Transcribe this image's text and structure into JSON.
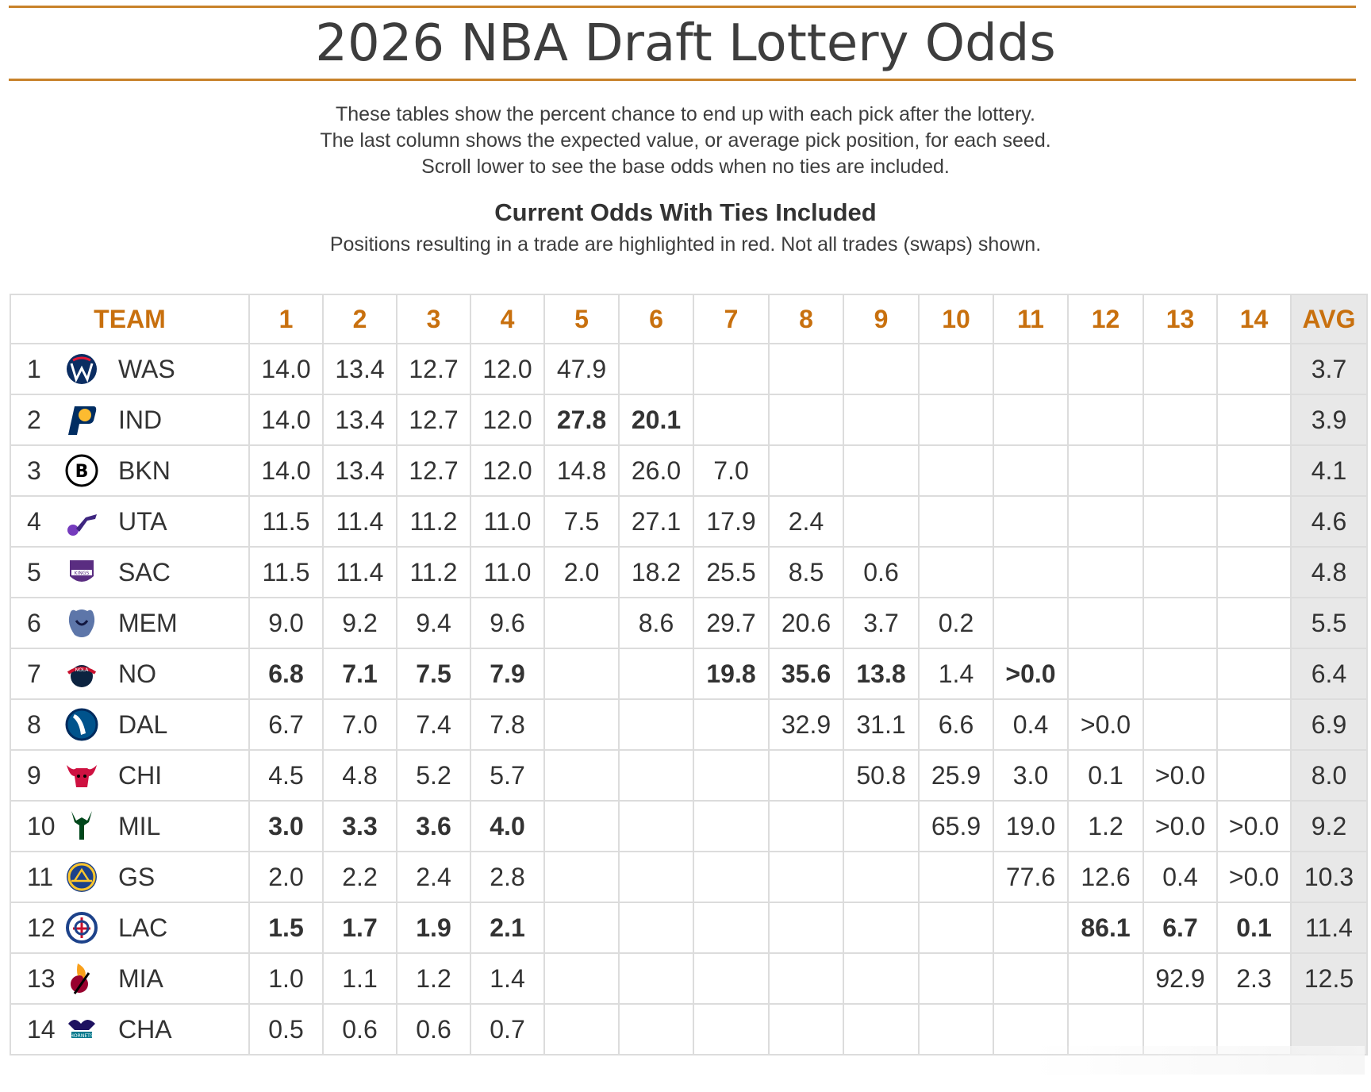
{
  "title": "2026 NBA Draft Lottery Odds",
  "intro": [
    "These tables show the percent chance to end up with each pick after the lottery.",
    "The last column shows the expected value, or average pick position, for each seed.",
    "Scroll lower to see the base odds when no ties are included."
  ],
  "section_title": "Current Odds With Ties Included",
  "section_sub": "Positions resulting in a trade are highlighted in red. Not all trades (swaps) shown.",
  "header": {
    "team": "TEAM",
    "picks": [
      "1",
      "2",
      "3",
      "4",
      "5",
      "6",
      "7",
      "8",
      "9",
      "10",
      "11",
      "12",
      "13",
      "14"
    ],
    "avg": "AVG"
  },
  "colors": {
    "accent": "#c8822a",
    "trade": "#dd0000",
    "avg_bg": "#e8e8e8"
  },
  "rows": [
    {
      "seed": "1",
      "team": "WAS",
      "logo": "wizards-logo",
      "cells": [
        "14.0",
        "13.4",
        "12.7",
        "12.0",
        "47.9",
        "",
        "",
        "",
        "",
        "",
        "",
        "",
        "",
        ""
      ],
      "trade": [],
      "avg": "3.7"
    },
    {
      "seed": "2",
      "team": "IND",
      "logo": "pacers-logo",
      "cells": [
        "14.0",
        "13.4",
        "12.7",
        "12.0",
        "27.8",
        "20.1",
        "",
        "",
        "",
        "",
        "",
        "",
        "",
        ""
      ],
      "trade": [
        4,
        5
      ],
      "avg": "3.9"
    },
    {
      "seed": "3",
      "team": "BKN",
      "logo": "nets-logo",
      "cells": [
        "14.0",
        "13.4",
        "12.7",
        "12.0",
        "14.8",
        "26.0",
        "7.0",
        "",
        "",
        "",
        "",
        "",
        "",
        ""
      ],
      "trade": [],
      "avg": "4.1"
    },
    {
      "seed": "4",
      "team": "UTA",
      "logo": "jazz-logo",
      "cells": [
        "11.5",
        "11.4",
        "11.2",
        "11.0",
        "7.5",
        "27.1",
        "17.9",
        "2.4",
        "",
        "",
        "",
        "",
        "",
        ""
      ],
      "trade": [],
      "avg": "4.6"
    },
    {
      "seed": "5",
      "team": "SAC",
      "logo": "kings-logo",
      "cells": [
        "11.5",
        "11.4",
        "11.2",
        "11.0",
        "2.0",
        "18.2",
        "25.5",
        "8.5",
        "0.6",
        "",
        "",
        "",
        "",
        ""
      ],
      "trade": [],
      "avg": "4.8"
    },
    {
      "seed": "6",
      "team": "MEM",
      "logo": "grizzlies-logo",
      "cells": [
        "9.0",
        "9.2",
        "9.4",
        "9.6",
        "",
        "8.6",
        "29.7",
        "20.6",
        "3.7",
        "0.2",
        "",
        "",
        "",
        ""
      ],
      "trade": [],
      "avg": "5.5"
    },
    {
      "seed": "7",
      "team": "NO",
      "logo": "pelicans-logo",
      "cells": [
        "6.8",
        "7.1",
        "7.5",
        "7.9",
        "",
        "",
        "19.8",
        "35.6",
        "13.8",
        "1.4",
        ">0.0",
        "",
        "",
        ""
      ],
      "trade": [
        0,
        1,
        2,
        3,
        6,
        7,
        8,
        10
      ],
      "avg": "6.4"
    },
    {
      "seed": "8",
      "team": "DAL",
      "logo": "mavericks-logo",
      "cells": [
        "6.7",
        "7.0",
        "7.4",
        "7.8",
        "",
        "",
        "",
        "32.9",
        "31.1",
        "6.6",
        "0.4",
        ">0.0",
        "",
        ""
      ],
      "trade": [],
      "avg": "6.9"
    },
    {
      "seed": "9",
      "team": "CHI",
      "logo": "bulls-logo",
      "cells": [
        "4.5",
        "4.8",
        "5.2",
        "5.7",
        "",
        "",
        "",
        "",
        "50.8",
        "25.9",
        "3.0",
        "0.1",
        ">0.0",
        ""
      ],
      "trade": [],
      "avg": "8.0"
    },
    {
      "seed": "10",
      "team": "MIL",
      "logo": "bucks-logo",
      "cells": [
        "3.0",
        "3.3",
        "3.6",
        "4.0",
        "",
        "",
        "",
        "",
        "",
        "65.9",
        "19.0",
        "1.2",
        ">0.0",
        ">0.0"
      ],
      "trade": [
        0,
        1,
        2,
        3
      ],
      "avg": "9.2"
    },
    {
      "seed": "11",
      "team": "GS",
      "logo": "warriors-logo",
      "cells": [
        "2.0",
        "2.2",
        "2.4",
        "2.8",
        "",
        "",
        "",
        "",
        "",
        "",
        "77.6",
        "12.6",
        "0.4",
        ">0.0"
      ],
      "trade": [],
      "avg": "10.3"
    },
    {
      "seed": "12",
      "team": "LAC",
      "logo": "clippers-logo",
      "cells": [
        "1.5",
        "1.7",
        "1.9",
        "2.1",
        "",
        "",
        "",
        "",
        "",
        "",
        "",
        "86.1",
        "6.7",
        "0.1"
      ],
      "trade": [
        0,
        1,
        2,
        3,
        11,
        12,
        13
      ],
      "avg": "11.4"
    },
    {
      "seed": "13",
      "team": "MIA",
      "logo": "heat-logo",
      "cells": [
        "1.0",
        "1.1",
        "1.2",
        "1.4",
        "",
        "",
        "",
        "",
        "",
        "",
        "",
        "",
        "92.9",
        "2.3"
      ],
      "trade": [],
      "avg": "12.5"
    },
    {
      "seed": "14",
      "team": "CHA",
      "logo": "hornets-logo",
      "cells": [
        "0.5",
        "0.6",
        "0.6",
        "0.7",
        "",
        "",
        "",
        "",
        "",
        "",
        "",
        "",
        "",
        ""
      ],
      "trade": [],
      "avg": ""
    }
  ]
}
